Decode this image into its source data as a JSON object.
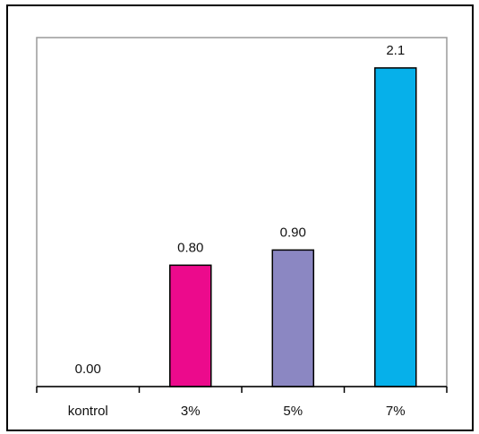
{
  "chart_data": {
    "type": "bar",
    "title": "",
    "xlabel": "",
    "ylabel": "",
    "categories": [
      "kontrol",
      "3%",
      "5%",
      "7%"
    ],
    "values": [
      0.0,
      0.8,
      0.9,
      2.1
    ],
    "value_labels": [
      "0.00",
      "0.80",
      "0.90",
      "2.1"
    ],
    "colors": [
      "#ffffff",
      "#ec0a8c",
      "#8b87c2",
      "#06b0ea"
    ],
    "ylim": [
      0,
      2.3
    ],
    "grid": false,
    "legend": "none"
  }
}
